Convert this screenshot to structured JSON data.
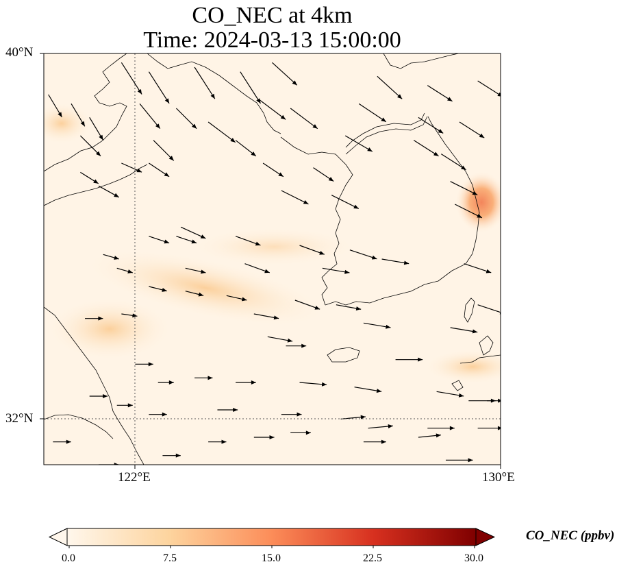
{
  "title": {
    "line1": "CO_NEC at 4km",
    "line2": "Time: 2024-03-13 15:00:00"
  },
  "axes": {
    "lat_labels": [
      "40°N",
      "32°N"
    ],
    "lon_labels": [
      "122°E",
      "130°E"
    ],
    "lat_range": [
      31,
      40
    ],
    "lon_range": [
      120,
      130
    ],
    "gridlines": [
      {
        "lat": 32
      },
      {
        "lon": 122
      }
    ]
  },
  "colorbar": {
    "label": "CO_NEC (ppbv)",
    "ticks": [
      "0.0",
      "7.5",
      "15.0",
      "22.5",
      "30.0"
    ],
    "range": [
      0,
      30
    ],
    "extend": "both",
    "colormap": "OrRd",
    "colors": [
      "#fff7ec",
      "#fdd49e",
      "#fc8d59",
      "#d7301f",
      "#7f0000"
    ]
  },
  "chart_data": {
    "type": "heatmap",
    "variable": "CO_NEC",
    "units": "ppbv",
    "field_features": [
      {
        "lon": 129.8,
        "lat": 35.5,
        "value": 15
      },
      {
        "lon": 123.5,
        "lat": 34.2,
        "value": 8
      },
      {
        "lon": 122.0,
        "lat": 33.8,
        "value": 6
      },
      {
        "lon": 120.5,
        "lat": 38.5,
        "value": 5
      },
      {
        "lon": 129.5,
        "lat": 32.9,
        "value": 5
      }
    ],
    "wind_vectors": [
      [
        121.7,
        39.8,
        0.45,
        -0.7
      ],
      [
        122.3,
        39.6,
        0.45,
        -0.7
      ],
      [
        123.3,
        39.7,
        0.45,
        -0.7
      ],
      [
        124.3,
        39.6,
        0.45,
        -0.7
      ],
      [
        125.0,
        39.8,
        0.55,
        -0.5
      ],
      [
        127.3,
        39.5,
        0.55,
        -0.5
      ],
      [
        128.4,
        39.3,
        0.55,
        -0.35
      ],
      [
        129.5,
        39.4,
        0.55,
        -0.35
      ],
      [
        120.1,
        39.1,
        0.3,
        -0.5
      ],
      [
        120.6,
        38.9,
        0.3,
        -0.5
      ],
      [
        121.0,
        38.6,
        0.3,
        -0.5
      ],
      [
        122.1,
        38.9,
        0.45,
        -0.55
      ],
      [
        122.9,
        38.8,
        0.45,
        -0.45
      ],
      [
        124.7,
        39.0,
        0.6,
        -0.45
      ],
      [
        125.4,
        38.8,
        0.6,
        -0.45
      ],
      [
        126.9,
        38.9,
        0.6,
        -0.4
      ],
      [
        128.2,
        38.6,
        0.55,
        -0.35
      ],
      [
        129.1,
        38.5,
        0.55,
        -0.35
      ],
      [
        120.8,
        38.2,
        0.45,
        -0.45
      ],
      [
        122.4,
        38.1,
        0.45,
        -0.45
      ],
      [
        123.6,
        38.5,
        0.6,
        -0.45
      ],
      [
        124.2,
        38.1,
        0.45,
        -0.35
      ],
      [
        126.6,
        38.2,
        0.6,
        -0.35
      ],
      [
        128.1,
        38.1,
        0.55,
        -0.35
      ],
      [
        128.7,
        37.8,
        0.55,
        -0.35
      ],
      [
        121.7,
        37.6,
        0.45,
        -0.2
      ],
      [
        122.3,
        37.6,
        0.45,
        -0.3
      ],
      [
        124.8,
        37.6,
        0.45,
        -0.3
      ],
      [
        125.9,
        37.5,
        0.45,
        -0.3
      ],
      [
        128.9,
        37.2,
        0.6,
        -0.3
      ],
      [
        120.8,
        37.4,
        0.4,
        -0.25
      ],
      [
        121.2,
        37.1,
        0.45,
        -0.25
      ],
      [
        125.2,
        37.0,
        0.6,
        -0.3
      ],
      [
        126.3,
        36.9,
        0.6,
        -0.3
      ],
      [
        129.0,
        36.7,
        0.6,
        -0.3
      ],
      [
        123.0,
        36.2,
        0.55,
        -0.25
      ],
      [
        124.2,
        36.0,
        0.55,
        -0.2
      ],
      [
        125.6,
        35.8,
        0.55,
        -0.2
      ],
      [
        126.7,
        35.7,
        0.6,
        -0.2
      ],
      [
        122.3,
        36.0,
        0.45,
        -0.15
      ],
      [
        122.9,
        36.0,
        0.45,
        -0.15
      ],
      [
        121.3,
        35.6,
        0.35,
        -0.1
      ],
      [
        121.6,
        35.3,
        0.35,
        -0.1
      ],
      [
        123.1,
        35.3,
        0.45,
        -0.1
      ],
      [
        124.4,
        35.4,
        0.55,
        -0.2
      ],
      [
        126.1,
        35.3,
        0.6,
        -0.1
      ],
      [
        127.4,
        35.5,
        0.6,
        -0.1
      ],
      [
        129.2,
        35.4,
        0.6,
        -0.2
      ],
      [
        122.3,
        34.9,
        0.4,
        -0.1
      ],
      [
        123.1,
        34.8,
        0.4,
        -0.1
      ],
      [
        124.0,
        34.7,
        0.45,
        -0.1
      ],
      [
        125.5,
        34.6,
        0.55,
        -0.2
      ],
      [
        126.4,
        34.5,
        0.55,
        -0.1
      ],
      [
        129.5,
        34.5,
        0.6,
        -0.2
      ],
      [
        120.9,
        34.2,
        0.4,
        0.0
      ],
      [
        121.7,
        34.3,
        0.35,
        -0.05
      ],
      [
        124.6,
        34.3,
        0.55,
        -0.1
      ],
      [
        127.0,
        34.1,
        0.6,
        -0.1
      ],
      [
        128.9,
        34.0,
        0.6,
        -0.1
      ],
      [
        124.9,
        33.8,
        0.55,
        -0.1
      ],
      [
        125.3,
        33.6,
        0.45,
        0.0
      ],
      [
        122.0,
        33.2,
        0.4,
        0.0
      ],
      [
        127.7,
        33.3,
        0.6,
        0.0
      ],
      [
        122.5,
        32.8,
        0.35,
        0.0
      ],
      [
        123.3,
        32.9,
        0.4,
        0.0
      ],
      [
        124.2,
        32.8,
        0.45,
        0.0
      ],
      [
        125.6,
        32.8,
        0.6,
        -0.05
      ],
      [
        126.8,
        32.7,
        0.6,
        -0.1
      ],
      [
        128.6,
        32.6,
        0.6,
        -0.1
      ],
      [
        129.3,
        32.4,
        0.6,
        0.0
      ],
      [
        121.0,
        32.5,
        0.4,
        0.0
      ],
      [
        121.6,
        32.3,
        0.35,
        0.0
      ],
      [
        122.3,
        32.1,
        0.4,
        0.0
      ],
      [
        123.8,
        32.2,
        0.45,
        0.0
      ],
      [
        125.2,
        32.1,
        0.45,
        0.0
      ],
      [
        126.5,
        32.0,
        0.55,
        0.05
      ],
      [
        127.1,
        31.8,
        0.55,
        0.05
      ],
      [
        128.4,
        31.8,
        0.6,
        0.0
      ],
      [
        120.2,
        31.5,
        0.4,
        0.0
      ],
      [
        122.6,
        31.2,
        0.4,
        0.0
      ],
      [
        123.6,
        31.5,
        0.4,
        0.0
      ],
      [
        124.6,
        31.6,
        0.45,
        0.0
      ],
      [
        125.4,
        31.7,
        0.45,
        0.0
      ],
      [
        127.0,
        31.5,
        0.5,
        0.0
      ],
      [
        128.2,
        31.6,
        0.5,
        0.05
      ],
      [
        129.5,
        31.8,
        0.55,
        0.0
      ],
      [
        121.2,
        31.0,
        0.45,
        0.0
      ],
      [
        124.4,
        30.9,
        0.45,
        0.0
      ],
      [
        128.8,
        31.1,
        0.6,
        0.0
      ],
      [
        129.7,
        32.4,
        0.35,
        0.0
      ]
    ]
  }
}
